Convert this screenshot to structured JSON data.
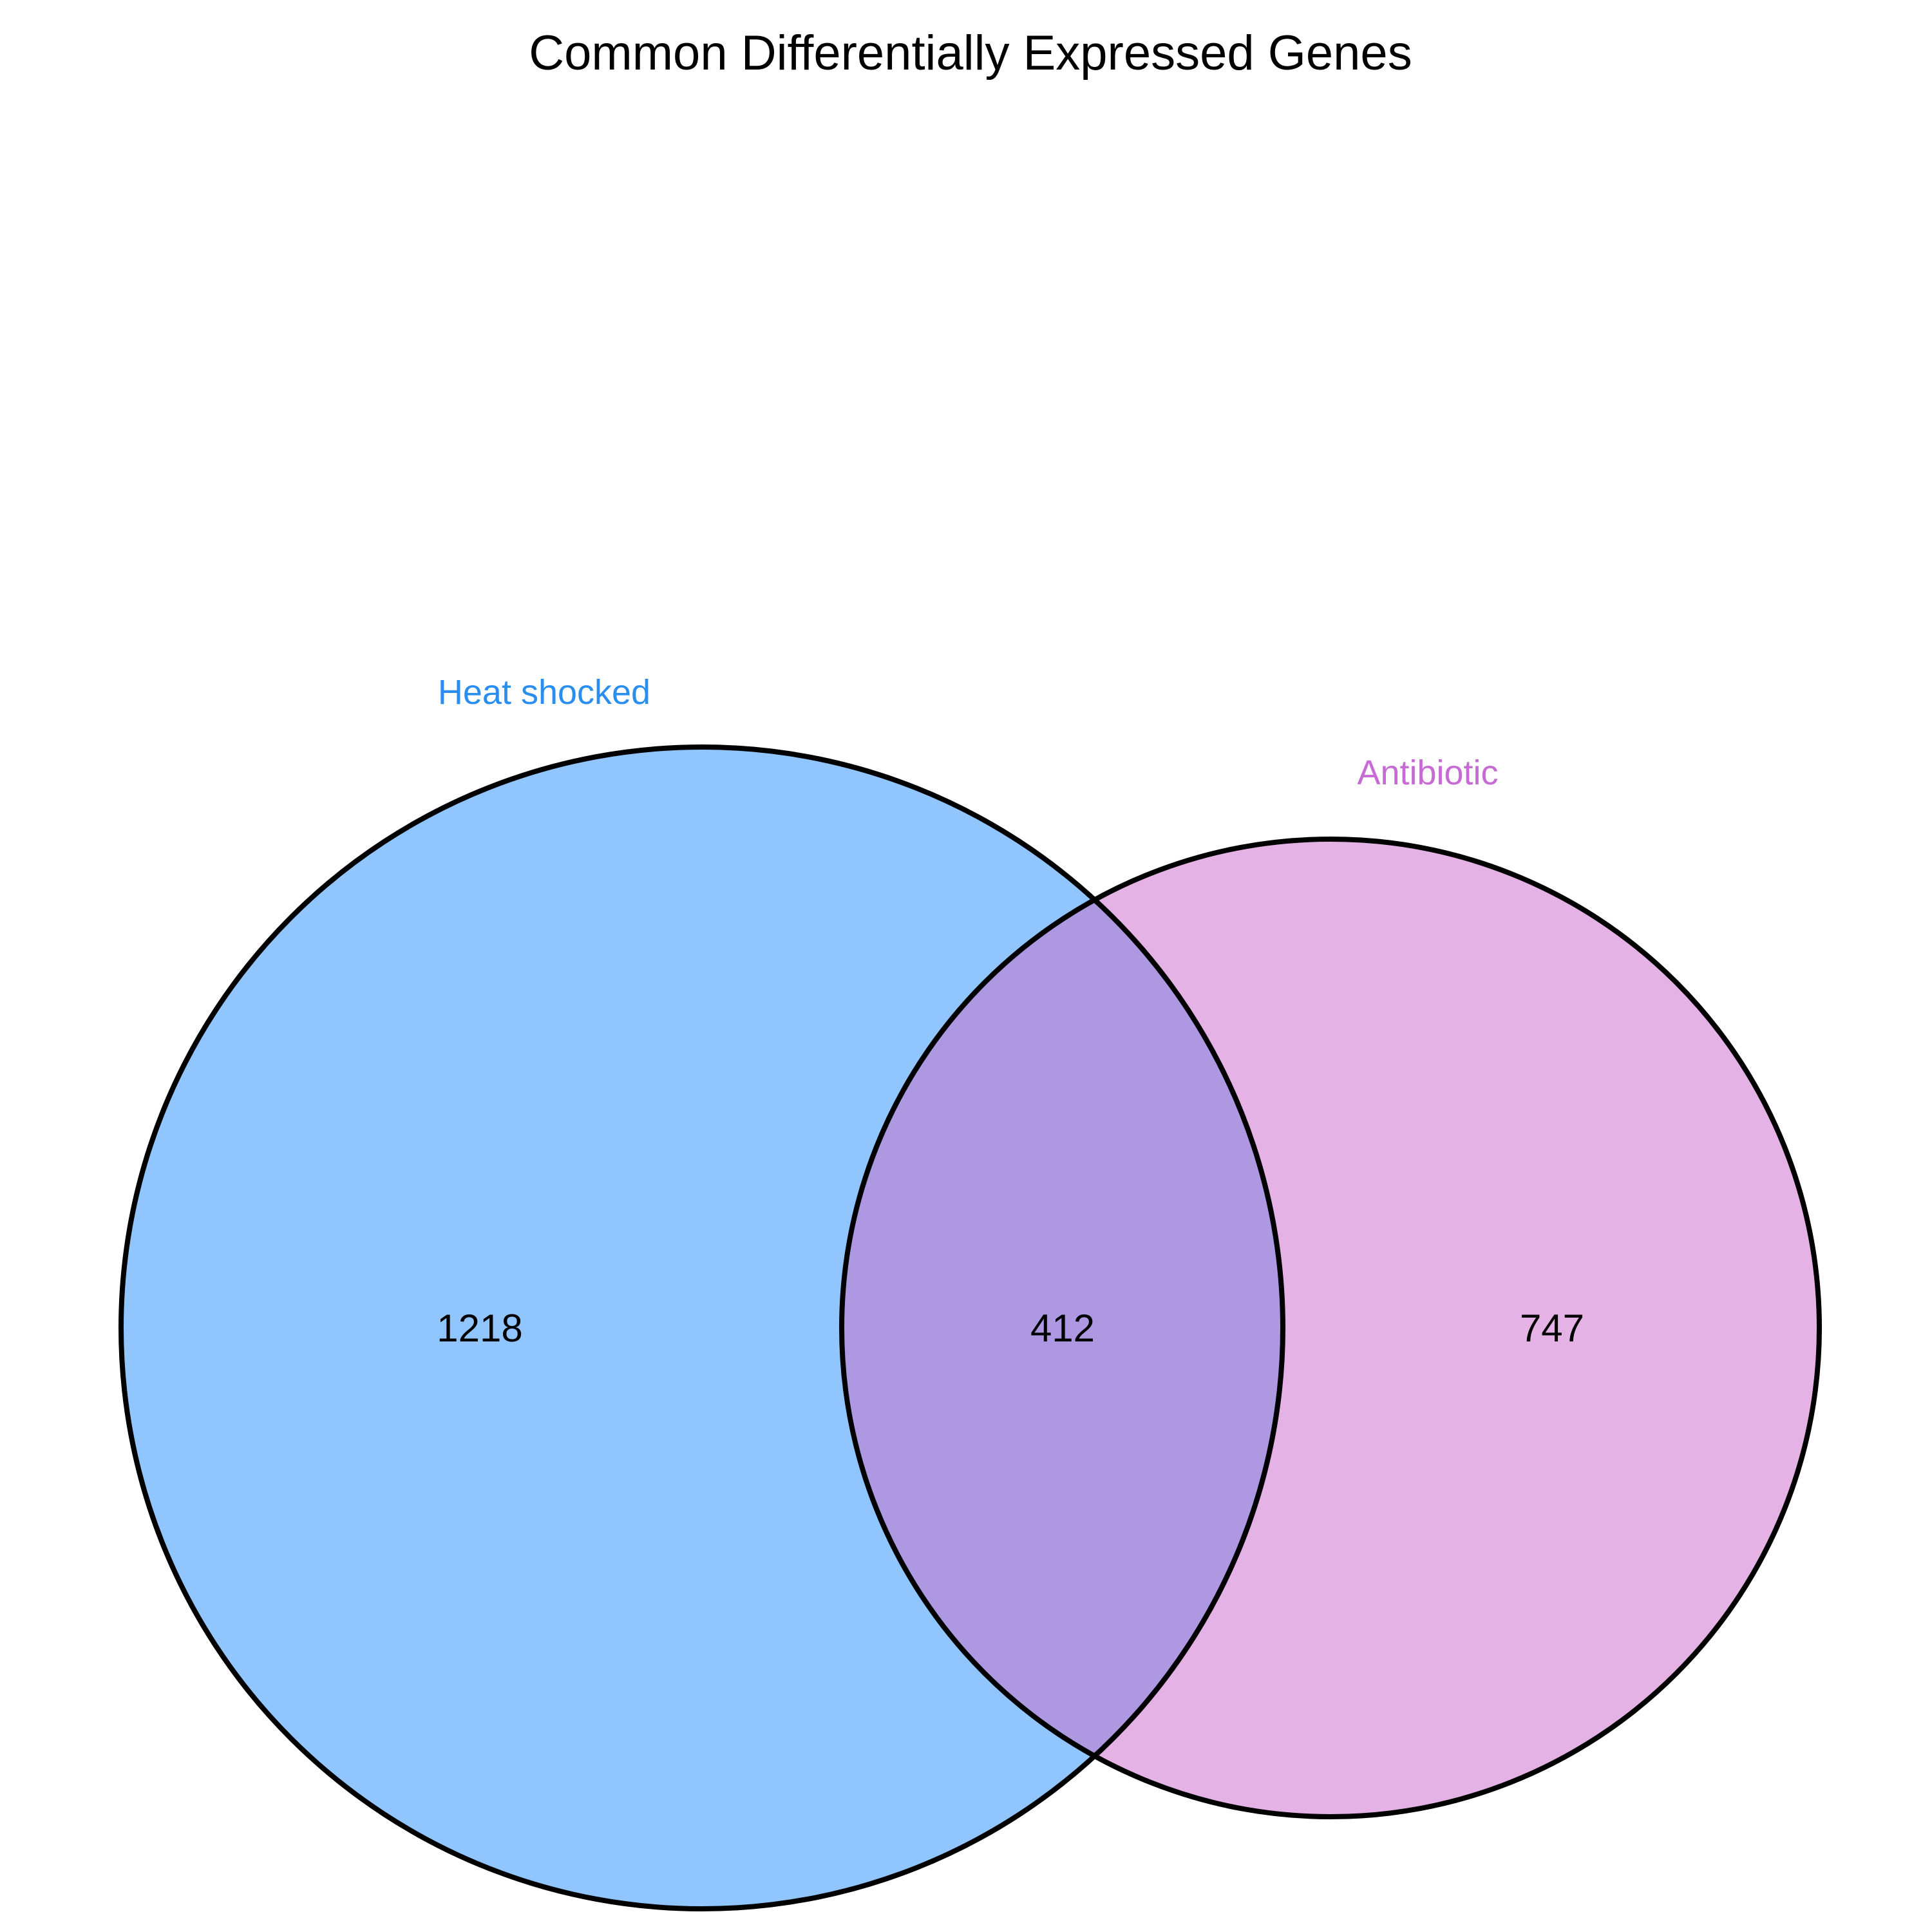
{
  "title": "Common Differentially Expressed Genes",
  "chart_data": {
    "type": "venn",
    "title": "Common Differentially Expressed Genes",
    "sets": [
      {
        "name": "Heat shocked",
        "only_count": "1218",
        "fill_color": "#90c5fd",
        "label_color": "#2a8ef0"
      },
      {
        "name": "Antibiotic",
        "only_count": "747",
        "fill_color": "#e4b2e4",
        "label_color": "#c66ad4"
      }
    ],
    "intersection": {
      "count": "412",
      "fill_color": "#ae98e2"
    },
    "outline_color": "#000000"
  }
}
